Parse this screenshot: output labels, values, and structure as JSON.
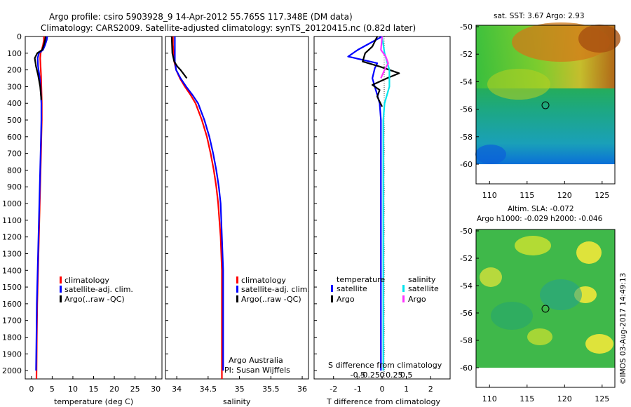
{
  "header": {
    "line1": "Argo profile: csiro 5903928_9 14-Apr-2012 55.765S 117.348E (DM data)",
    "line2": "Climatology: CARS2009. Satellite-adjusted climatology: synTS_20120415.nc (0.82d later)"
  },
  "colors": {
    "climatology": "#ff0000",
    "satellite": "#0000ff",
    "argo": "#000000",
    "sal_satellite": "#00e5ee",
    "sal_argo": "#ff33ff"
  },
  "depth_ticks": [
    "0",
    "100",
    "200",
    "300",
    "400",
    "500",
    "600",
    "700",
    "800",
    "900",
    "1000",
    "1100",
    "1200",
    "1300",
    "1400",
    "1500",
    "1600",
    "1700",
    "1800",
    "1900",
    "2000"
  ],
  "temp_panel": {
    "xlabel": "temperature (deg C)",
    "xticks": [
      "0",
      "5",
      "10",
      "15",
      "20",
      "25",
      "30"
    ],
    "legend": [
      "climatology",
      "satellite-adj. clim.",
      "Argo(..raw -QC)"
    ]
  },
  "sal_panel": {
    "xlabel": "salinity",
    "xticks": [
      "34",
      "34.5",
      "35",
      "35.5",
      "36"
    ],
    "legend": [
      "climatology",
      "satellite-adj. clim.",
      "Argo(..raw -QC)"
    ],
    "note1": "Argo Australia",
    "note2": "PI: Susan Wijffels"
  },
  "diff_panel": {
    "top_label": "S difference from climatology",
    "s_ticks": [
      "-0.5",
      "-0.25",
      "0",
      "0.25",
      "0.5"
    ],
    "t_ticks": [
      "-2",
      "-1",
      "0",
      "1",
      "2"
    ],
    "xlabel": "T difference from climatology",
    "legend_temp_title": "temperature",
    "legend_sal_title": "salinity",
    "legend_items": [
      "satellite",
      "Argo",
      "satellite",
      "Argo"
    ]
  },
  "sst_map": {
    "title": "sat. SST: 3.67  Argo: 2.93",
    "yticks": [
      "-50",
      "-52",
      "-54",
      "-56",
      "-58",
      "-60"
    ],
    "xticks": [
      "110",
      "115",
      "120",
      "125"
    ]
  },
  "sla_map": {
    "title1": "Altim. SLA: -0.072",
    "title2": "Argo h1000: -0.029 h2000: -0.046",
    "yticks": [
      "-50",
      "-52",
      "-54",
      "-56",
      "-58",
      "-60"
    ],
    "xticks": [
      "110",
      "115",
      "120",
      "125"
    ]
  },
  "footer": {
    "credit": "©IMOS 03-Aug-2017 14:49:13"
  },
  "chart_data": [
    {
      "type": "line",
      "xlabel": "temperature (deg C)",
      "ylabel": "",
      "xlim": [
        -1.5,
        31.5
      ],
      "ylim": [
        2050,
        0
      ],
      "series": [
        {
          "name": "climatology",
          "x": [
            3.0,
            3.0,
            2.8,
            2.5,
            2.2,
            2.1,
            2.2,
            2.3,
            2.4,
            2.5,
            2.5,
            2.4,
            2.3,
            2.2,
            2.1,
            2.0,
            1.9,
            1.8,
            1.7,
            1.6,
            1.5,
            1.4,
            1.3,
            1.2
          ],
          "y": [
            0,
            20,
            50,
            80,
            100,
            130,
            180,
            230,
            300,
            400,
            500,
            600,
            700,
            800,
            900,
            1000,
            1100,
            1200,
            1300,
            1400,
            1500,
            1600,
            1800,
            2050
          ]
        },
        {
          "name": "satellite-adj. clim.",
          "x": [
            3.8,
            3.7,
            3.3,
            2.8,
            1.8,
            1.5,
            1.6,
            1.9,
            2.2,
            2.4,
            2.4,
            2.3,
            2.2,
            2.1,
            2.0,
            1.9,
            1.8,
            1.7,
            1.6,
            1.5,
            1.4,
            1.3,
            1.2,
            1.1
          ],
          "y": [
            0,
            20,
            50,
            80,
            100,
            130,
            180,
            230,
            300,
            400,
            500,
            600,
            700,
            800,
            900,
            1000,
            1100,
            1200,
            1300,
            1400,
            1500,
            1600,
            1800,
            2000
          ]
        },
        {
          "name": "Argo(..raw -QC)",
          "x": [
            3.4,
            3.3,
            3.0,
            2.6,
            1.4,
            0.8,
            1.1,
            1.6,
            2.1,
            2.4
          ],
          "y": [
            0,
            20,
            50,
            80,
            100,
            130,
            180,
            230,
            300,
            380
          ]
        }
      ]
    },
    {
      "type": "line",
      "xlabel": "salinity",
      "ylabel": "",
      "xlim": [
        33.82,
        36.1
      ],
      "ylim": [
        2050,
        0
      ],
      "series": [
        {
          "name": "climatology",
          "x": [
            33.94,
            33.94,
            33.95,
            33.96,
            33.99,
            34.05,
            34.13,
            34.22,
            34.3,
            34.4,
            34.48,
            34.54,
            34.59,
            34.63,
            34.66,
            34.68,
            34.7,
            34.71,
            34.72,
            34.72,
            34.72,
            34.72,
            34.72,
            34.72
          ],
          "y": [
            0,
            50,
            100,
            150,
            200,
            250,
            300,
            350,
            400,
            500,
            600,
            700,
            800,
            900,
            1000,
            1100,
            1200,
            1300,
            1400,
            1500,
            1600,
            1700,
            1900,
            2050
          ]
        },
        {
          "name": "satellite-adj. clim.",
          "x": [
            33.97,
            33.97,
            33.97,
            33.97,
            33.99,
            34.06,
            34.15,
            34.25,
            34.34,
            34.44,
            34.52,
            34.58,
            34.63,
            34.67,
            34.7,
            34.71,
            34.72,
            34.73,
            34.74,
            34.74,
            34.74,
            34.74,
            34.74,
            34.74
          ],
          "y": [
            0,
            50,
            100,
            150,
            200,
            250,
            300,
            350,
            400,
            500,
            600,
            700,
            800,
            900,
            1000,
            1100,
            1200,
            1300,
            1400,
            1500,
            1600,
            1700,
            1900,
            2000
          ]
        },
        {
          "name": "Argo(..raw -QC)",
          "x": [
            33.92,
            33.93,
            33.96,
            34.01,
            34.06,
            34.1,
            34.16
          ],
          "y": [
            0,
            100,
            150,
            180,
            200,
            220,
            250
          ]
        }
      ]
    },
    {
      "type": "line",
      "xlabel": "T difference from climatology",
      "ylabel": "",
      "xlim": [
        -2.8,
        2.8
      ],
      "ylim": [
        2050,
        0
      ],
      "series": [
        {
          "name": "satellite",
          "x": [
            0.0,
            -1.0,
            -1.4,
            -0.8,
            -0.2,
            -0.3,
            -0.4,
            -0.3,
            -0.1,
            -0.05,
            -0.05,
            -0.05,
            -0.05,
            -0.05,
            -0.05
          ],
          "y": [
            0,
            80,
            120,
            140,
            160,
            190,
            250,
            300,
            400,
            500,
            700,
            1000,
            1300,
            1600,
            2000
          ]
        },
        {
          "name": "Argo",
          "x": [
            -0.2,
            -0.4,
            -0.7,
            -0.8,
            -0.1,
            0.3,
            0.7,
            0.2,
            -0.4,
            -0.1,
            -0.2,
            -0.1,
            0.0
          ],
          "y": [
            0,
            60,
            100,
            150,
            180,
            200,
            220,
            250,
            290,
            320,
            360,
            390,
            420
          ]
        },
        {
          "name": "salinity satellite",
          "x": [
            0.0,
            0.1,
            0.2,
            0.3,
            0.3,
            0.1,
            0.05,
            0.05
          ],
          "y": [
            0,
            100,
            150,
            200,
            300,
            400,
            500,
            2000
          ]
        },
        {
          "name": "salinity Argo",
          "x": [
            0.0,
            -0.05,
            0.15,
            0.25,
            0.1,
            -0.05
          ],
          "y": [
            0,
            80,
            120,
            160,
            200,
            250
          ]
        }
      ]
    }
  ]
}
